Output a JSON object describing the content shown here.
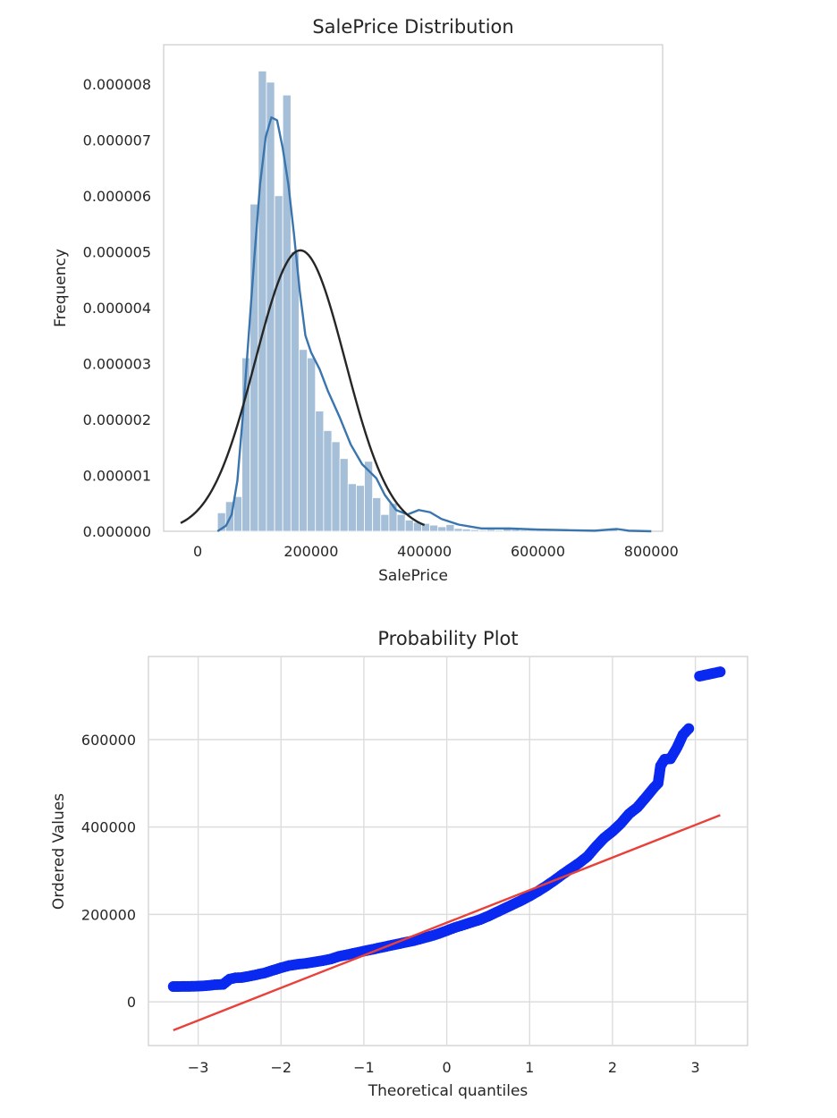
{
  "chart_data": [
    {
      "type": "bar",
      "title": "SalePrice Distribution",
      "xlabel": "SalePrice",
      "ylabel": "Frequency",
      "xlim": [
        -60000,
        820000
      ],
      "ylim": [
        0,
        8.7e-06
      ],
      "xticks": [
        "0",
        "200000",
        "400000",
        "600000",
        "800000"
      ],
      "yticks": [
        "0.000000",
        "0.000001",
        "0.000002",
        "0.000003",
        "0.000004",
        "0.000005",
        "0.000006",
        "0.000007",
        "0.000008"
      ],
      "grid": false,
      "histogram": {
        "bin_start": 34900,
        "bin_width": 14400,
        "densities": [
          3.3e-07,
          5.3e-07,
          6.2e-07,
          3.1e-06,
          5.85e-06,
          8.23e-06,
          8.03e-06,
          6e-06,
          7.8e-06,
          5e-06,
          3.25e-06,
          3.1e-06,
          2.15e-06,
          1.8e-06,
          1.6e-06,
          1.3e-06,
          8.5e-07,
          8.2e-07,
          1.25e-06,
          6e-07,
          3e-07,
          5e-07,
          3e-07,
          2e-07,
          1.6e-07,
          1.4e-07,
          1.1e-07,
          8e-08,
          1.2e-07,
          5e-08,
          4e-08,
          3e-08,
          2e-08,
          3e-08,
          2e-08,
          4e-08,
          3e-08,
          2e-08,
          2e-08,
          3e-08,
          2e-08,
          1e-08,
          2e-08,
          1e-08,
          1e-08,
          1e-08,
          1e-08,
          1e-08,
          6e-08,
          1e-08
        ],
        "color": "#a5bfd8"
      },
      "series": [
        {
          "kind": "kde",
          "color": "#3a75ad",
          "x": [
            35000,
            50000,
            60000,
            70000,
            80000,
            90000,
            100000,
            110000,
            120000,
            130000,
            140000,
            150000,
            160000,
            170000,
            180000,
            190000,
            200000,
            215000,
            230000,
            250000,
            270000,
            290000,
            300000,
            315000,
            330000,
            350000,
            370000,
            390000,
            410000,
            430000,
            460000,
            500000,
            550000,
            600000,
            650000,
            700000,
            740000,
            760000,
            800000
          ],
          "y": [
            0.0,
            1e-07,
            3e-07,
            9e-07,
            2.1e-06,
            3.5e-06,
            4.9e-06,
            6.2e-06,
            7.05e-06,
            7.4e-06,
            7.35e-06,
            6.85e-06,
            6.2e-06,
            5.3e-06,
            4.3e-06,
            3.5e-06,
            3.2e-06,
            2.9e-06,
            2.5e-06,
            2.05e-06,
            1.55e-06,
            1.2e-06,
            1.1e-06,
            9.5e-07,
            6.5e-07,
            3.8e-07,
            3e-07,
            3.8e-07,
            3.4e-07,
            2.2e-07,
            1.2e-07,
            5e-08,
            5e-08,
            3e-08,
            2e-08,
            1e-08,
            4e-08,
            1e-08,
            0.0
          ]
        },
        {
          "kind": "normal-fit",
          "color": "#262626",
          "mu": 180921,
          "sigma": 79415,
          "x_range": [
            -30000,
            400000
          ]
        }
      ]
    },
    {
      "type": "scatter",
      "title": "Probability Plot",
      "xlabel": "Theoretical quantiles",
      "ylabel": "Ordered Values",
      "xlim": [
        -3.6,
        3.63
      ],
      "ylim": [
        -100000,
        790000
      ],
      "xticks": [
        "−3",
        "−2",
        "−1",
        "0",
        "1",
        "2",
        "3"
      ],
      "xtick_values": [
        -3,
        -2,
        -1,
        0,
        1,
        2,
        3
      ],
      "yticks": [
        "0",
        "200000",
        "400000",
        "600000"
      ],
      "ytick_values": [
        0,
        200000,
        400000,
        600000
      ],
      "grid": true,
      "series": [
        {
          "kind": "points",
          "color": "#0a29f0",
          "points": [
            [
              -3.3,
              35000
            ],
            [
              -3.05,
              35500
            ],
            [
              -2.9,
              37000
            ],
            [
              -2.8,
              39000
            ],
            [
              -2.7,
              40000
            ],
            [
              -2.62,
              52000
            ],
            [
              -2.55,
              55000
            ],
            [
              -2.48,
              55500
            ],
            [
              -2.4,
              58000
            ],
            [
              -2.3,
              62000
            ],
            [
              -2.2,
              66000
            ],
            [
              -2.1,
              72000
            ],
            [
              -2.0,
              78000
            ],
            [
              -1.9,
              83000
            ],
            [
              -1.8,
              86000
            ],
            [
              -1.7,
              88000
            ],
            [
              -1.6,
              91000
            ],
            [
              -1.5,
              94000
            ],
            [
              -1.4,
              98000
            ],
            [
              -1.3,
              104000
            ],
            [
              -1.2,
              108000
            ],
            [
              -1.1,
              112000
            ],
            [
              -1.0,
              116000
            ],
            [
              -0.9,
              120000
            ],
            [
              -0.8,
              124000
            ],
            [
              -0.7,
              128000
            ],
            [
              -0.6,
              132000
            ],
            [
              -0.5,
              136000
            ],
            [
              -0.4,
              140000
            ],
            [
              -0.3,
              145000
            ],
            [
              -0.2,
              150000
            ],
            [
              -0.1,
              156000
            ],
            [
              0.0,
              163000
            ],
            [
              0.1,
              170000
            ],
            [
              0.2,
              176000
            ],
            [
              0.3,
              182000
            ],
            [
              0.4,
              188000
            ],
            [
              0.5,
              196000
            ],
            [
              0.6,
              205000
            ],
            [
              0.7,
              214000
            ],
            [
              0.8,
              223000
            ],
            [
              0.9,
              232000
            ],
            [
              1.0,
              242000
            ],
            [
              1.1,
              253000
            ],
            [
              1.2,
              265000
            ],
            [
              1.3,
              278000
            ],
            [
              1.4,
              292000
            ],
            [
              1.5,
              305000
            ],
            [
              1.6,
              318000
            ],
            [
              1.7,
              333000
            ],
            [
              1.8,
              355000
            ],
            [
              1.9,
              375000
            ],
            [
              2.0,
              390000
            ],
            [
              2.1,
              408000
            ],
            [
              2.2,
              430000
            ],
            [
              2.3,
              445000
            ],
            [
              2.4,
              467000
            ],
            [
              2.5,
              490000
            ],
            [
              2.55,
              500000
            ],
            [
              2.58,
              540000
            ],
            [
              2.63,
              555000
            ],
            [
              2.7,
              556000
            ],
            [
              2.78,
              582000
            ],
            [
              2.85,
              611000
            ],
            [
              2.92,
              625000
            ],
            [
              3.05,
              745000
            ],
            [
              3.3,
              755000
            ]
          ]
        },
        {
          "kind": "fit-line",
          "color": "#e8413a",
          "x": [
            -3.3,
            3.3
          ],
          "y": [
            -65000,
            427000
          ]
        }
      ]
    }
  ]
}
